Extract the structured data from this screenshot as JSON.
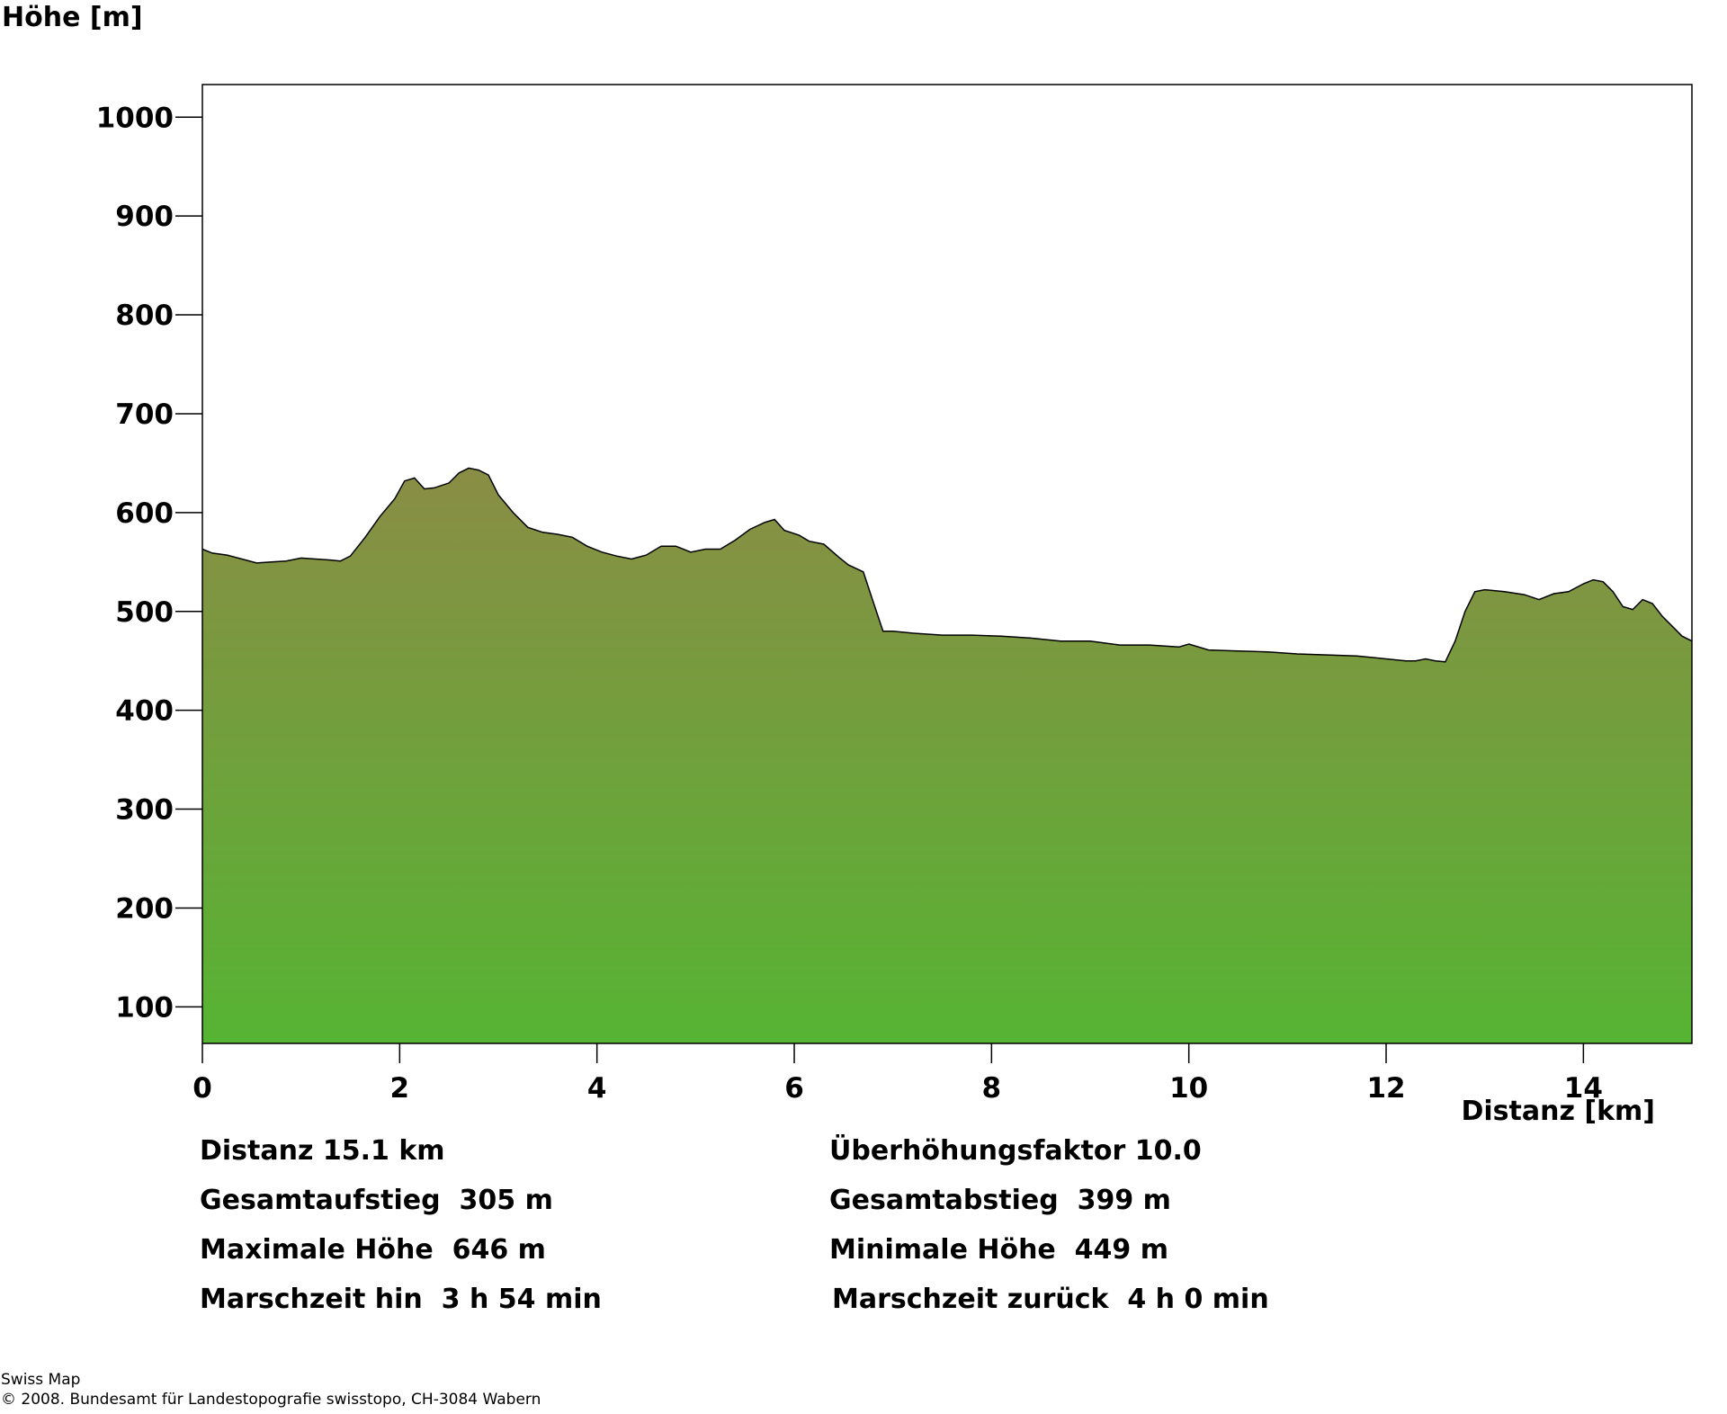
{
  "chart_data": {
    "type": "area",
    "title": "",
    "ylabel": "Höhe [m]",
    "xlabel": "Distanz [km]",
    "xlim": [
      0,
      15.1
    ],
    "ylim": [
      63,
      1033
    ],
    "x_ticks": [
      0,
      2,
      4,
      6,
      8,
      10,
      12,
      14
    ],
    "y_ticks": [
      100,
      200,
      300,
      400,
      500,
      600,
      700,
      800,
      900,
      1000
    ],
    "grid": false,
    "legend": "none",
    "colors": {
      "fill_top": "#8a8d45",
      "fill_bottom": "#56b433",
      "outline": "#000000"
    },
    "series": [
      {
        "x": [
          0,
          0.1,
          0.25,
          0.4,
          0.55,
          0.7,
          0.85,
          1.0,
          1.15,
          1.3,
          1.4,
          1.5,
          1.65,
          1.8,
          1.95,
          2.05,
          2.15,
          2.25,
          2.35,
          2.5,
          2.6,
          2.7,
          2.8,
          2.9,
          3.0,
          3.15,
          3.3,
          3.45,
          3.6,
          3.75,
          3.9,
          4.05,
          4.2,
          4.35,
          4.5,
          4.65,
          4.8,
          4.95,
          5.1,
          5.25,
          5.4,
          5.55,
          5.7,
          5.8,
          5.9,
          6.05,
          6.15,
          6.3,
          6.45,
          6.55,
          6.7,
          6.8,
          6.9,
          7.0,
          7.2,
          7.5,
          7.8,
          8.1,
          8.4,
          8.7,
          9.0,
          9.3,
          9.6,
          9.9,
          10.0,
          10.2,
          10.5,
          10.8,
          11.1,
          11.4,
          11.7,
          12.0,
          12.2,
          12.3,
          12.4,
          12.5,
          12.6,
          12.7,
          12.8,
          12.9,
          13.0,
          13.2,
          13.4,
          13.55,
          13.7,
          13.85,
          14.0,
          14.1,
          14.2,
          14.3,
          14.4,
          14.5,
          14.6,
          14.7,
          14.8,
          14.9,
          15.0,
          15.1
        ],
        "values": [
          563,
          559,
          557,
          553,
          549,
          550,
          551,
          554,
          553,
          552,
          551,
          556,
          575,
          596,
          614,
          632,
          635,
          624,
          625,
          630,
          640,
          645,
          643,
          638,
          618,
          600,
          585,
          580,
          578,
          575,
          566,
          560,
          556,
          553,
          557,
          566,
          566,
          560,
          563,
          563,
          572,
          583,
          590,
          593,
          582,
          577,
          571,
          568,
          555,
          547,
          540,
          510,
          480,
          480,
          478,
          476,
          476,
          475,
          473,
          470,
          470,
          466,
          466,
          464,
          467,
          461,
          460,
          459,
          457,
          456,
          455,
          452,
          450,
          450,
          452,
          450,
          449,
          470,
          500,
          520,
          522,
          520,
          517,
          512,
          518,
          520,
          528,
          532,
          530,
          520,
          505,
          502,
          512,
          508,
          495,
          485,
          475,
          470
        ]
      }
    ]
  },
  "stats": {
    "distanz": "Distanz 15.1 km",
    "ueberhoehung": "Überhöhungsfaktor 10.0",
    "aufstieg": "Gesamtaufstieg  305 m",
    "abstieg": "Gesamtabstieg  399 m",
    "max_hoehe": "Maximale Höhe  646 m",
    "min_hoehe": "Minimale Höhe  449 m",
    "zeit_hin": "Marschzeit hin  3 h 54 min",
    "zeit_zurueck": "Marschzeit zurück  4 h 0 min"
  },
  "footer": {
    "line1": "Swiss Map",
    "line2": "© 2008. Bundesamt für Landestopografie swisstopo, CH-3084 Wabern"
  }
}
